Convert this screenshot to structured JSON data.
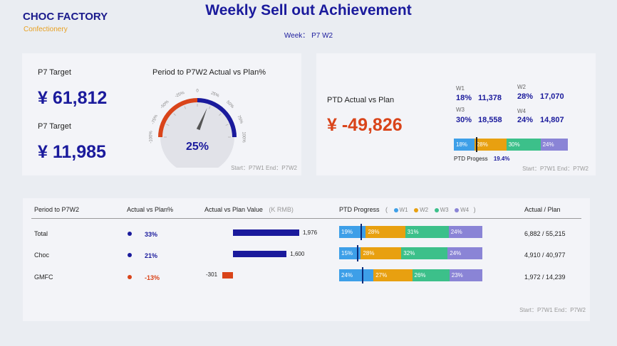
{
  "brand": {
    "name": "CHOC FACTORY",
    "sub": "Confectionery"
  },
  "header": {
    "title": "Weekly Sell out Achievement",
    "week": "Week： P7 W2"
  },
  "colors": {
    "w1": "#3d9fe8",
    "w2": "#e8a010",
    "w3": "#3cc08a",
    "w4": "#8a84d6",
    "navy": "#1a1a9c",
    "red": "#d9441a"
  },
  "card1": {
    "target1_label": "P7 Target",
    "target1_value": "¥ 61,812",
    "target2_label": "P7 Target",
    "target2_value": "¥ 11,985",
    "gauge_title": "Period to P7W2 Actual vs Plan%",
    "gauge_value": "25%",
    "gauge_level": 25,
    "gauge_ticks": [
      "-100%",
      "-75%",
      "-50%",
      "-25%",
      "0",
      "25%",
      "50%",
      "75%",
      "100%"
    ],
    "footer": "Start：P7W1  End：P7W2"
  },
  "card2": {
    "label": "PTD Actual vs Plan",
    "value": "¥ -49,826",
    "weeks": [
      {
        "name": "W1",
        "pct": "18%",
        "val": "11,378"
      },
      {
        "name": "W2",
        "pct": "28%",
        "val": "17,070"
      },
      {
        "name": "W3",
        "pct": "30%",
        "val": "18,558"
      },
      {
        "name": "W4",
        "pct": "24%",
        "val": "14,807"
      }
    ],
    "bar": [
      18,
      28,
      30,
      24
    ],
    "bar_labels": [
      "18%",
      "28%",
      "30%",
      "24%"
    ],
    "progress_label": "PTD Progess",
    "progress_value": "19.4%",
    "progress_level": 19.4,
    "footer": "Start：P7W1  End：P7W2"
  },
  "table": {
    "headers": {
      "period": "Period to P7W2",
      "avp": "Actual vs Plan%",
      "value": "Actual vs Plan Value",
      "unit": "(K RMB)",
      "progress": "PTD Progress",
      "ap": "Actual / Plan"
    },
    "legend": [
      "W1",
      "W2",
      "W3",
      "W4"
    ],
    "legend_open": "(",
    "legend_close": ")",
    "rows": [
      {
        "name": "Total",
        "pct": "33%",
        "value": 1976,
        "value_label": "1,976",
        "segs": [
          19,
          28,
          31,
          24
        ],
        "seg_labels": [
          "19%",
          "28%",
          "31%",
          "24%"
        ],
        "progress": 14.7,
        "ap": "6,882  /  55,215"
      },
      {
        "name": "Choc",
        "pct": "21%",
        "value": 1600,
        "value_label": "1,600",
        "segs": [
          15,
          28,
          32,
          24
        ],
        "seg_labels": [
          "15%",
          "28%",
          "32%",
          "24%"
        ],
        "progress": 12.5,
        "ap": "4,910  /  40,977"
      },
      {
        "name": "GMFC",
        "pct": "-13%",
        "value": -301,
        "value_label": "-301",
        "segs": [
          24,
          27,
          26,
          23
        ],
        "seg_labels": [
          "24%",
          "27%",
          "26%",
          "23%"
        ],
        "progress": 16,
        "ap": "1,972  /  14,239"
      }
    ],
    "footer": "Start：P7W1  End：P7W2"
  }
}
